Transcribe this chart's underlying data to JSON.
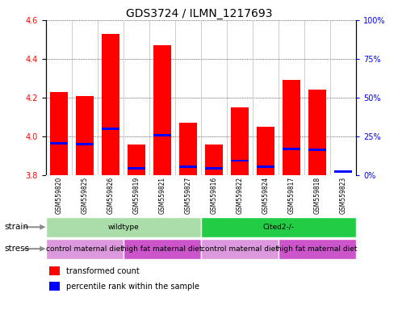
{
  "title": "GDS3724 / ILMN_1217693",
  "samples": [
    "GSM559820",
    "GSM559825",
    "GSM559826",
    "GSM559819",
    "GSM559821",
    "GSM559827",
    "GSM559816",
    "GSM559822",
    "GSM559824",
    "GSM559817",
    "GSM559818",
    "GSM559823"
  ],
  "red_values": [
    4.23,
    4.21,
    4.53,
    3.96,
    4.47,
    4.07,
    3.96,
    4.15,
    4.05,
    4.29,
    4.24,
    3.8
  ],
  "blue_values": [
    3.965,
    3.96,
    4.04,
    3.835,
    4.005,
    3.845,
    3.835,
    3.875,
    3.845,
    3.935,
    3.93,
    3.82
  ],
  "ylim_left": [
    3.8,
    4.6
  ],
  "ylim_right": [
    0,
    100
  ],
  "left_ticks": [
    3.8,
    4.0,
    4.2,
    4.4,
    4.6
  ],
  "right_ticks": [
    0,
    25,
    50,
    75,
    100
  ],
  "right_tick_labels": [
    "0%",
    "25%",
    "50%",
    "75%",
    "100%"
  ],
  "strain_groups": [
    {
      "label": "wildtype",
      "start": 0,
      "end": 6,
      "color": "#aaddaa"
    },
    {
      "label": "Cited2-/-",
      "start": 6,
      "end": 12,
      "color": "#22cc44"
    }
  ],
  "stress_groups": [
    {
      "label": "control maternal diet",
      "start": 0,
      "end": 3,
      "color": "#dd99dd"
    },
    {
      "label": "high fat maternal diet",
      "start": 3,
      "end": 6,
      "color": "#cc55cc"
    },
    {
      "label": "control maternal diet",
      "start": 6,
      "end": 9,
      "color": "#dd99dd"
    },
    {
      "label": "high fat maternal diet",
      "start": 9,
      "end": 12,
      "color": "#cc55cc"
    }
  ],
  "bar_bottom": 3.8,
  "bar_width": 0.7,
  "blue_bar_height": 0.012,
  "tick_fontsize": 7,
  "title_fontsize": 10,
  "sample_fontsize": 5.5,
  "annotation_fontsize": 6.5,
  "label_fontsize": 7.5,
  "legend_fontsize": 7
}
